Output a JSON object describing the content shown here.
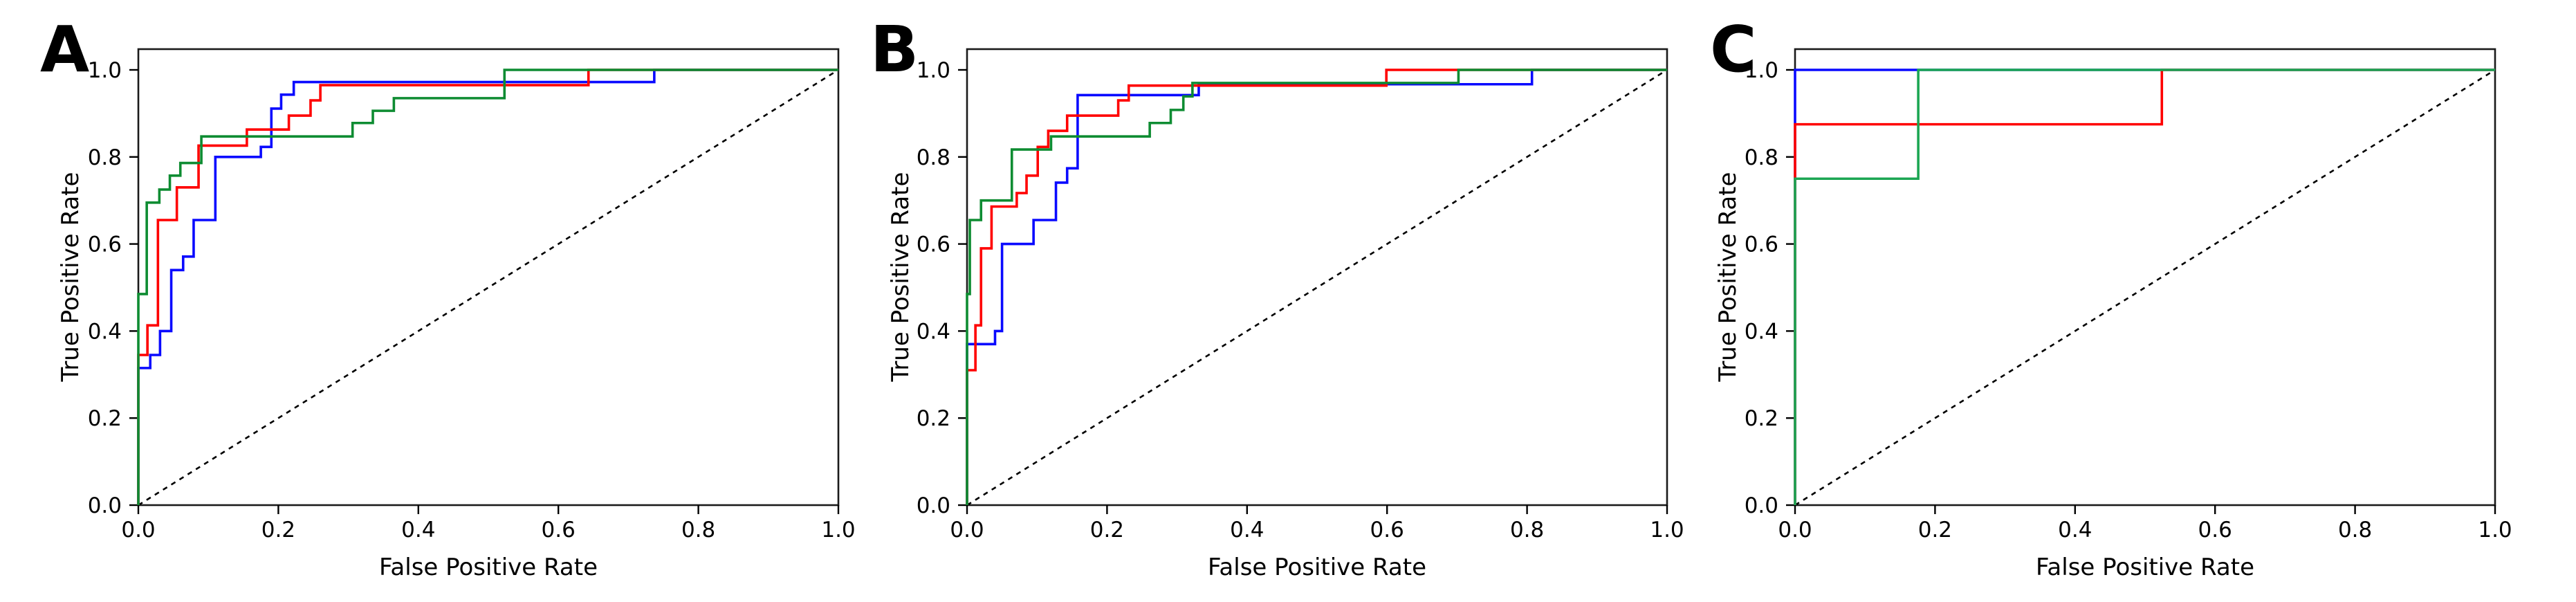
{
  "figure": {
    "background": "#ffffff",
    "x_axis_label": "False Positive Rate",
    "y_axis_label": "True Positive Rate",
    "x_tick_labels": [
      "0.0",
      "0.2",
      "0.4",
      "0.6",
      "0.8",
      "1.0"
    ],
    "y_tick_labels": [
      "0.0",
      "0.2",
      "0.4",
      "0.6",
      "0.8",
      "1.0"
    ],
    "axis_color": "#1a1a1a",
    "tick_label_color": "#000000"
  },
  "chart_data": [
    {
      "type": "line",
      "panel_label": "A",
      "xlabel": "False Positive Rate",
      "ylabel": "True Positive Rate",
      "xlim": [
        0,
        1.0
      ],
      "ylim": [
        0,
        1.048
      ],
      "x_ticks": [
        0,
        0.2,
        0.4,
        0.6,
        0.8,
        1.0
      ],
      "y_ticks": [
        0,
        0.2,
        0.4,
        0.6,
        0.8,
        1.0
      ],
      "grid": false,
      "legend": "none",
      "diagonal_reference": {
        "name": "chance-line",
        "style": "dashed",
        "color": "#000000",
        "points": [
          [
            0,
            0
          ],
          [
            1,
            1
          ]
        ]
      },
      "series": [
        {
          "name": "blue-roc",
          "color": "#0a0aff",
          "points": [
            [
              0,
              0
            ],
            [
              0,
              0.315
            ],
            [
              0.017,
              0.315
            ],
            [
              0.017,
              0.345
            ],
            [
              0.031,
              0.345
            ],
            [
              0.031,
              0.4
            ],
            [
              0.047,
              0.4
            ],
            [
              0.047,
              0.54
            ],
            [
              0.064,
              0.54
            ],
            [
              0.064,
              0.571
            ],
            [
              0.079,
              0.571
            ],
            [
              0.079,
              0.655
            ],
            [
              0.11,
              0.655
            ],
            [
              0.11,
              0.8
            ],
            [
              0.175,
              0.8
            ],
            [
              0.175,
              0.823
            ],
            [
              0.19,
              0.823
            ],
            [
              0.19,
              0.911
            ],
            [
              0.204,
              0.911
            ],
            [
              0.204,
              0.943
            ],
            [
              0.222,
              0.943
            ],
            [
              0.222,
              0.972
            ],
            [
              0.737,
              0.972
            ],
            [
              0.737,
              1.0
            ],
            [
              1,
              1
            ]
          ]
        },
        {
          "name": "red-roc",
          "color": "#ff0000",
          "points": [
            [
              0,
              0
            ],
            [
              0,
              0.345
            ],
            [
              0.013,
              0.345
            ],
            [
              0.013,
              0.413
            ],
            [
              0.028,
              0.413
            ],
            [
              0.028,
              0.655
            ],
            [
              0.055,
              0.655
            ],
            [
              0.055,
              0.73
            ],
            [
              0.086,
              0.73
            ],
            [
              0.086,
              0.826
            ],
            [
              0.155,
              0.826
            ],
            [
              0.155,
              0.863
            ],
            [
              0.215,
              0.863
            ],
            [
              0.215,
              0.895
            ],
            [
              0.246,
              0.895
            ],
            [
              0.246,
              0.93
            ],
            [
              0.26,
              0.93
            ],
            [
              0.26,
              0.965
            ],
            [
              0.643,
              0.965
            ],
            [
              0.643,
              1.0
            ],
            [
              1,
              1
            ]
          ]
        },
        {
          "name": "green-roc",
          "color": "#0e8c32",
          "points": [
            [
              0,
              0
            ],
            [
              0,
              0.485
            ],
            [
              0.012,
              0.485
            ],
            [
              0.012,
              0.695
            ],
            [
              0.03,
              0.695
            ],
            [
              0.03,
              0.725
            ],
            [
              0.045,
              0.725
            ],
            [
              0.045,
              0.757
            ],
            [
              0.06,
              0.757
            ],
            [
              0.06,
              0.786
            ],
            [
              0.09,
              0.786
            ],
            [
              0.09,
              0.847
            ],
            [
              0.306,
              0.847
            ],
            [
              0.306,
              0.878
            ],
            [
              0.335,
              0.878
            ],
            [
              0.335,
              0.906
            ],
            [
              0.365,
              0.906
            ],
            [
              0.365,
              0.935
            ],
            [
              0.523,
              0.935
            ],
            [
              0.523,
              1.0
            ],
            [
              1,
              1
            ]
          ]
        }
      ]
    },
    {
      "type": "line",
      "panel_label": "B",
      "xlabel": "False Positive Rate",
      "ylabel": "True Positive Rate",
      "xlim": [
        0,
        1.0
      ],
      "ylim": [
        0,
        1.048
      ],
      "x_ticks": [
        0,
        0.2,
        0.4,
        0.6,
        0.8,
        1.0
      ],
      "y_ticks": [
        0,
        0.2,
        0.4,
        0.6,
        0.8,
        1.0
      ],
      "grid": false,
      "legend": "none",
      "diagonal_reference": {
        "name": "chance-line",
        "style": "dashed",
        "color": "#000000",
        "points": [
          [
            0,
            0
          ],
          [
            1,
            1
          ]
        ]
      },
      "series": [
        {
          "name": "blue-roc",
          "color": "#0a0aff",
          "points": [
            [
              0,
              0
            ],
            [
              0,
              0.37
            ],
            [
              0.04,
              0.37
            ],
            [
              0.04,
              0.4
            ],
            [
              0.05,
              0.4
            ],
            [
              0.05,
              0.6
            ],
            [
              0.095,
              0.6
            ],
            [
              0.095,
              0.655
            ],
            [
              0.127,
              0.655
            ],
            [
              0.127,
              0.741
            ],
            [
              0.143,
              0.741
            ],
            [
              0.143,
              0.774
            ],
            [
              0.158,
              0.774
            ],
            [
              0.158,
              0.942
            ],
            [
              0.331,
              0.942
            ],
            [
              0.331,
              0.967
            ],
            [
              0.807,
              0.967
            ],
            [
              0.807,
              1.0
            ],
            [
              1,
              1
            ]
          ]
        },
        {
          "name": "red-roc",
          "color": "#ff0000",
          "points": [
            [
              0,
              0
            ],
            [
              0,
              0.31
            ],
            [
              0.012,
              0.31
            ],
            [
              0.012,
              0.413
            ],
            [
              0.02,
              0.413
            ],
            [
              0.02,
              0.59
            ],
            [
              0.035,
              0.59
            ],
            [
              0.035,
              0.686
            ],
            [
              0.071,
              0.686
            ],
            [
              0.071,
              0.717
            ],
            [
              0.085,
              0.717
            ],
            [
              0.085,
              0.757
            ],
            [
              0.101,
              0.757
            ],
            [
              0.101,
              0.823
            ],
            [
              0.116,
              0.823
            ],
            [
              0.116,
              0.86
            ],
            [
              0.143,
              0.86
            ],
            [
              0.143,
              0.895
            ],
            [
              0.216,
              0.895
            ],
            [
              0.216,
              0.93
            ],
            [
              0.231,
              0.93
            ],
            [
              0.231,
              0.964
            ],
            [
              0.599,
              0.964
            ],
            [
              0.599,
              1.0
            ],
            [
              1,
              1
            ]
          ]
        },
        {
          "name": "green-roc",
          "color": "#0e8c32",
          "points": [
            [
              0,
              0
            ],
            [
              0,
              0.485
            ],
            [
              0.004,
              0.485
            ],
            [
              0.004,
              0.655
            ],
            [
              0.02,
              0.655
            ],
            [
              0.02,
              0.7
            ],
            [
              0.064,
              0.7
            ],
            [
              0.064,
              0.817
            ],
            [
              0.12,
              0.817
            ],
            [
              0.12,
              0.847
            ],
            [
              0.261,
              0.847
            ],
            [
              0.261,
              0.878
            ],
            [
              0.291,
              0.878
            ],
            [
              0.291,
              0.908
            ],
            [
              0.309,
              0.908
            ],
            [
              0.309,
              0.939
            ],
            [
              0.322,
              0.939
            ],
            [
              0.322,
              0.97
            ],
            [
              0.702,
              0.97
            ],
            [
              0.702,
              1.0
            ],
            [
              1,
              1
            ]
          ]
        }
      ]
    },
    {
      "type": "line",
      "panel_label": "C",
      "xlabel": "False Positive Rate",
      "ylabel": "True Positive Rate",
      "xlim": [
        0,
        1.0
      ],
      "ylim": [
        0,
        1.048
      ],
      "x_ticks": [
        0,
        0.2,
        0.4,
        0.6,
        0.8,
        1.0
      ],
      "y_ticks": [
        0,
        0.2,
        0.4,
        0.6,
        0.8,
        1.0
      ],
      "grid": false,
      "legend": "none",
      "diagonal_reference": {
        "name": "chance-line",
        "style": "dashed",
        "color": "#000000",
        "points": [
          [
            0,
            0
          ],
          [
            1,
            1
          ]
        ]
      },
      "series": [
        {
          "name": "blue-roc",
          "color": "#0a0aff",
          "points": [
            [
              0,
              0
            ],
            [
              0,
              1.0
            ],
            [
              1,
              1
            ]
          ]
        },
        {
          "name": "red-roc",
          "color": "#ff0000",
          "points": [
            [
              0,
              0
            ],
            [
              0,
              0.875
            ],
            [
              0.524,
              0.875
            ],
            [
              0.524,
              1.0
            ],
            [
              1,
              1
            ]
          ]
        },
        {
          "name": "green-roc",
          "color": "#1ca653",
          "points": [
            [
              0,
              0
            ],
            [
              0,
              0.75
            ],
            [
              0.176,
              0.75
            ],
            [
              0.176,
              1.0
            ],
            [
              1,
              1
            ]
          ]
        }
      ]
    }
  ]
}
